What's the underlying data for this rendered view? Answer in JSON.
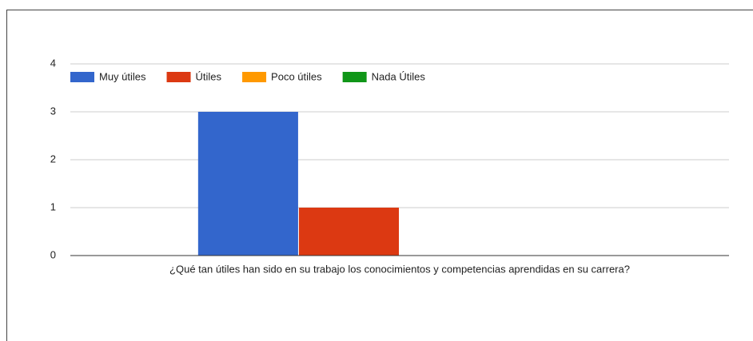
{
  "chart_data": {
    "type": "bar",
    "categories": [
      "¿Qué tan útiles han sido en su trabajo los conocimientos y competencias aprendidas en su carrera?"
    ],
    "series": [
      {
        "name": "Muy útiles",
        "color": "#3366cc",
        "values": [
          3
        ]
      },
      {
        "name": "Útiles",
        "color": "#dc3912",
        "values": [
          1
        ]
      },
      {
        "name": "Poco útiles",
        "color": "#ff9900",
        "values": [
          0
        ]
      },
      {
        "name": "Nada Útiles",
        "color": "#109618",
        "values": [
          0
        ]
      }
    ],
    "ylim": [
      0,
      4
    ],
    "yticks": [
      0,
      1,
      2,
      3,
      4
    ],
    "grid": true,
    "legend": "top"
  }
}
